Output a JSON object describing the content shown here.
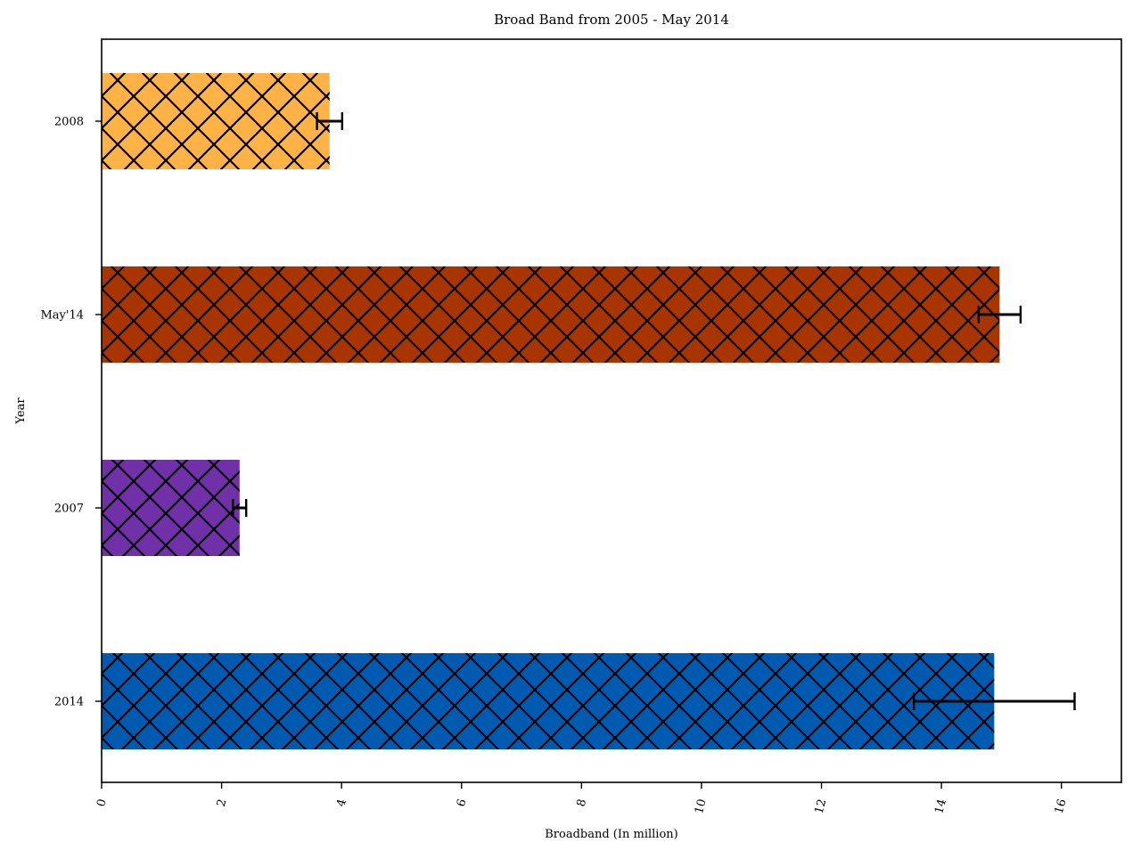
{
  "chart_data": {
    "type": "bar",
    "orientation": "horizontal",
    "title": "Broad Band from 2005 - May 2014",
    "xlabel": "Broadband (In million)",
    "ylabel": "Year",
    "xlim": [
      0,
      17
    ],
    "x_ticks": [
      0,
      2,
      4,
      6,
      8,
      10,
      12,
      14,
      16
    ],
    "x_tick_label_rotation": "vertical",
    "categories_top_to_bottom": [
      "2008",
      "May'14",
      "2007",
      "2014"
    ],
    "values": [
      3.8,
      14.97,
      2.3,
      14.88
    ],
    "error": [
      0.21,
      0.35,
      0.11,
      1.34
    ],
    "colors": [
      "#ffb347",
      "#a83500",
      "#7030a8",
      "#005bb0"
    ],
    "hatch": "crosshatch",
    "grid": false,
    "legend": "none"
  }
}
